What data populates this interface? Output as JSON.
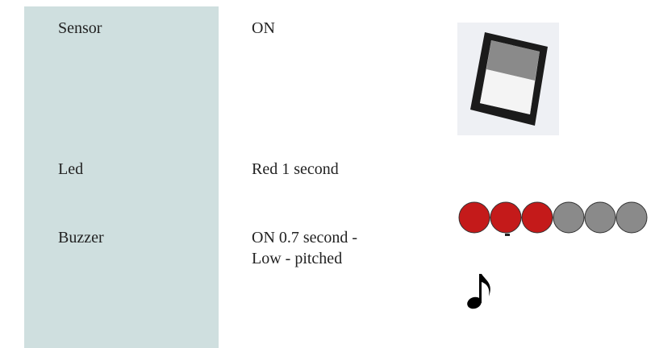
{
  "table": {
    "rows": [
      {
        "label": "Sensor",
        "value": [
          "ON"
        ]
      },
      {
        "label": "Led",
        "value": [
          "Red 1 second"
        ]
      },
      {
        "label": "Buzzer",
        "value": [
          "ON 0.7 second -",
          "Low - pitched"
        ]
      }
    ]
  }
}
